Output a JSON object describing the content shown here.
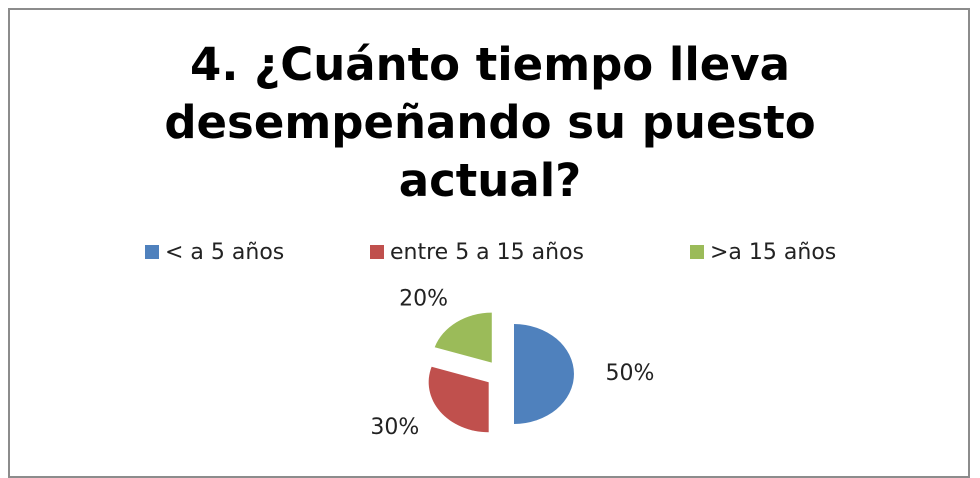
{
  "chart_data": {
    "type": "pie",
    "title": "4. ¿Cuánto tiempo lleva desempeñando su puesto actual?",
    "categories": [
      "< a 5 años",
      "entre 5 a 15 años",
      ">a 15 años"
    ],
    "values": [
      50,
      30,
      20
    ],
    "value_labels": [
      "50%",
      "30%",
      "20%"
    ],
    "colors": [
      "#4f81bd",
      "#c0504d",
      "#9bbb59"
    ],
    "legend": "top"
  }
}
